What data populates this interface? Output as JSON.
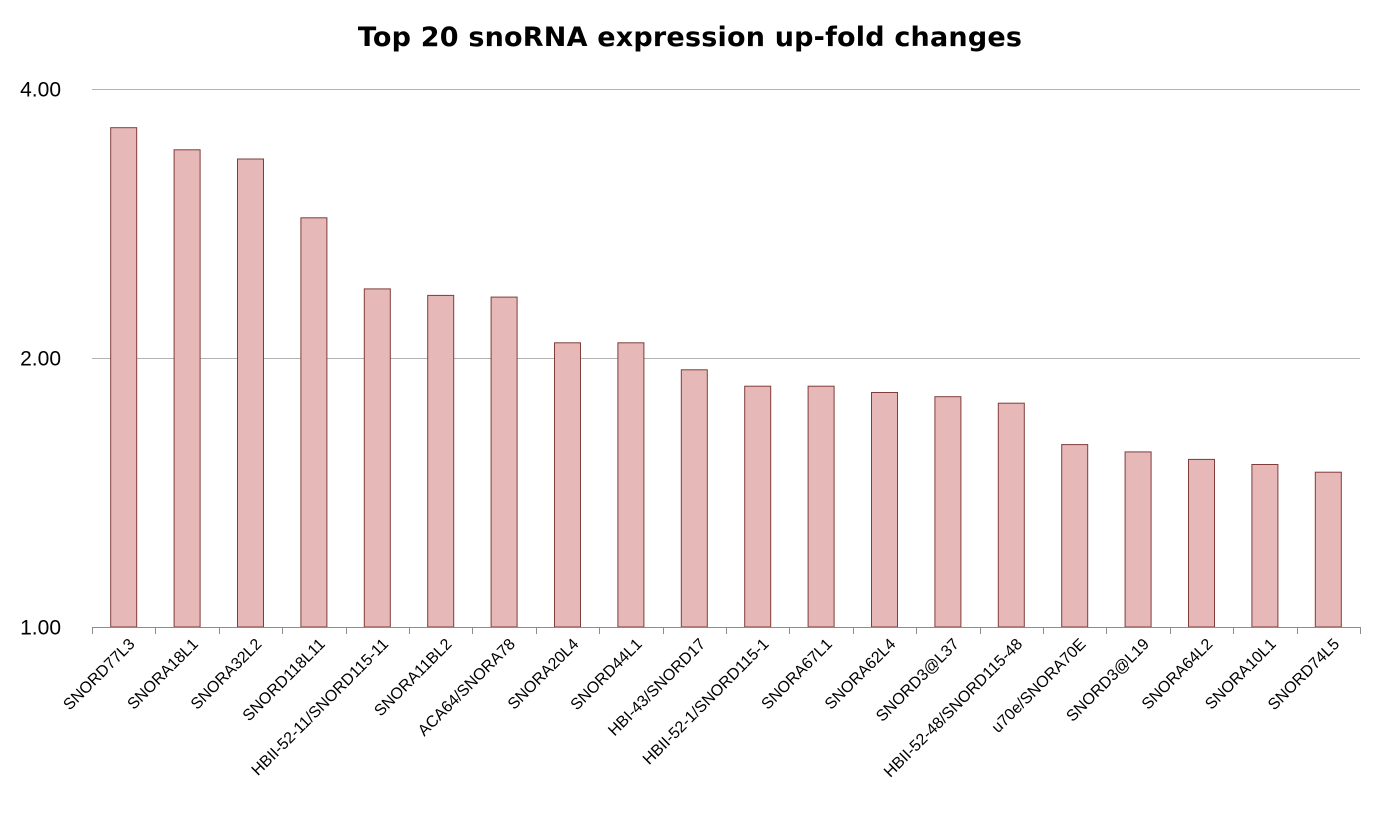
{
  "chart_data": {
    "type": "bar",
    "title": "Top 20 snoRNA expression up-fold changes",
    "xlabel": "",
    "ylabel": "",
    "y_scale": "log",
    "ylim": [
      1.0,
      4.0
    ],
    "yticks": [
      "1.00",
      "2.00",
      "4.00"
    ],
    "ytick_values": [
      1.0,
      2.0,
      4.0
    ],
    "grid": true,
    "legend": "none",
    "bar_color": "#e6b9b8",
    "bar_edge_color": "#7f3c3a",
    "categories": [
      "SNORD77L3",
      "SNORA18L1",
      "SNORA32L2",
      "SNORD118L11",
      "HBII-52-11/SNORD115-11",
      "SNORA11BL2",
      "ACA64/SNORA78",
      "SNORA20L4",
      "SNORD44L1",
      "HBI-43/SNORD17",
      "HBII-52-1/SNORD115-1",
      "SNORA67L1",
      "SNORA62L4",
      "SNORD3@L37",
      "HBII-52-48/SNORD115-48",
      "u70e/SNORA70E",
      "SNORD3@L19",
      "SNORA64L2",
      "SNORA10L1",
      "SNORD74L5"
    ],
    "values": [
      3.62,
      3.42,
      3.34,
      2.87,
      2.39,
      2.35,
      2.34,
      2.08,
      2.08,
      1.94,
      1.86,
      1.86,
      1.83,
      1.81,
      1.78,
      1.6,
      1.57,
      1.54,
      1.52,
      1.49
    ]
  }
}
